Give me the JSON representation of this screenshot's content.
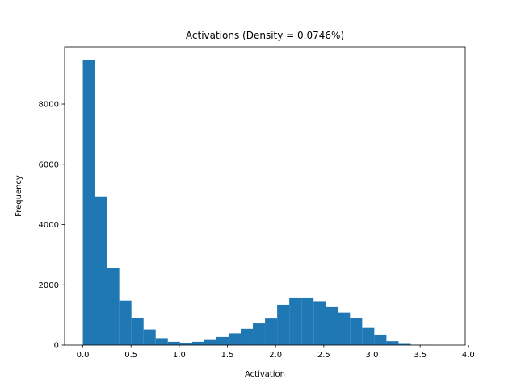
{
  "chart_data": {
    "type": "bar",
    "title": "Activations (Density = 0.0746%)",
    "xlabel": "Activation",
    "ylabel": "Frequency",
    "xlim": [
      -0.189,
      3.968
    ],
    "ylim": [
      0,
      9900
    ],
    "xticks": [
      0.0,
      0.5,
      1.0,
      1.5,
      2.0,
      2.5,
      3.0,
      3.5,
      4.0
    ],
    "xtick_labels": [
      "0.0",
      "0.5",
      "1.0",
      "1.5",
      "2.0",
      "2.5",
      "3.0",
      "3.5",
      "4.0"
    ],
    "yticks": [
      0,
      2000,
      4000,
      6000,
      8000
    ],
    "ytick_labels": [
      "0",
      "2000",
      "4000",
      "6000",
      "8000"
    ],
    "bin_edges": [
      0.0,
      0.126,
      0.252,
      0.378,
      0.504,
      0.63,
      0.756,
      0.882,
      1.008,
      1.134,
      1.26,
      1.386,
      1.512,
      1.638,
      1.764,
      1.89,
      2.016,
      2.142,
      2.268,
      2.394,
      2.52,
      2.646,
      2.772,
      2.898,
      3.024,
      3.15,
      3.276,
      3.402,
      3.528,
      3.654,
      3.78
    ],
    "values": [
      9450,
      4930,
      2560,
      1480,
      900,
      520,
      230,
      110,
      80,
      110,
      170,
      270,
      390,
      540,
      720,
      880,
      1340,
      1580,
      1580,
      1460,
      1260,
      1080,
      890,
      570,
      350,
      130,
      40,
      10,
      5,
      0
    ],
    "color": "#1f77b4",
    "grid": false
  }
}
